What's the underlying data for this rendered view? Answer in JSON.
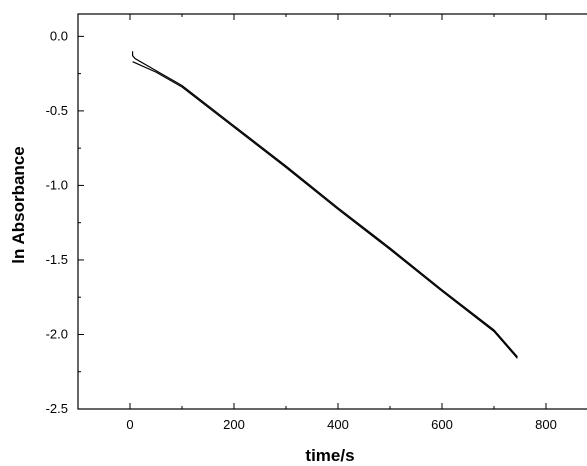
{
  "chart_data": {
    "type": "line",
    "title": "",
    "xlabel": "time/s",
    "ylabel": "ln Absorbance",
    "xlim": [
      -100,
      900
    ],
    "ylim": [
      -2.5,
      0.15
    ],
    "x_ticks": [
      0,
      200,
      400,
      600,
      800
    ],
    "x_tick_labels": [
      "0",
      "200",
      "400",
      "600",
      "800"
    ],
    "y_ticks": [
      0.0,
      -0.5,
      -1.0,
      -1.5,
      -2.0,
      -2.5
    ],
    "y_tick_labels": [
      "0.0",
      "-0.5",
      "-1.0",
      "-1.5",
      "-2.0",
      "-2.5"
    ],
    "grid": false,
    "legend": "none",
    "series": [
      {
        "x": [
          5,
          5,
          10,
          50,
          100,
          200,
          300,
          400,
          500,
          600,
          700,
          745
        ],
        "y": [
          -0.1,
          -0.13,
          -0.15,
          -0.23,
          -0.33,
          -0.6,
          -0.87,
          -1.15,
          -1.42,
          -1.7,
          -1.97,
          -2.15
        ]
      },
      {
        "x": [
          5,
          50,
          100,
          200,
          300,
          400,
          500,
          600,
          700,
          745
        ],
        "y": [
          -0.17,
          -0.24,
          -0.34,
          -0.61,
          -0.88,
          -1.16,
          -1.43,
          -1.71,
          -1.98,
          -2.16
        ]
      }
    ]
  }
}
